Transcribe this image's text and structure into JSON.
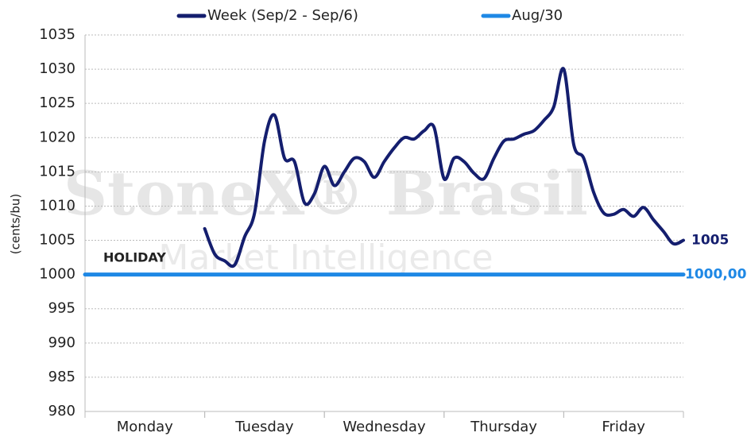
{
  "chart_data": {
    "type": "line",
    "y_label": "(cents/bu)",
    "annotation": "HOLIDAY",
    "watermark": [
      "StoneX® Brasil",
      "Market Intelligence"
    ],
    "categories": [
      null,
      null,
      null,
      null,
      null,
      null,
      "Monday",
      null,
      null,
      null,
      null,
      null,
      null,
      null,
      null,
      null,
      null,
      null,
      "Tuesday",
      null,
      null,
      null,
      null,
      null,
      null,
      null,
      null,
      null,
      null,
      null,
      "Wednesday",
      null,
      null,
      null,
      null,
      null,
      null,
      null,
      null,
      null,
      null,
      null,
      "Thursday",
      null,
      null,
      null,
      null,
      null,
      null,
      null,
      null,
      null,
      null,
      null,
      "Friday",
      null,
      null,
      null,
      null,
      null,
      null
    ],
    "series": [
      {
        "name": "Week (Sep/2 - Sep/6)",
        "color": "#141e6e",
        "label_last": true,
        "values": [
          null,
          null,
          null,
          null,
          null,
          null,
          null,
          null,
          null,
          null,
          null,
          null,
          1006.7,
          1003,
          1002,
          1001.4,
          1005.5,
          1009,
          1019.5,
          1023.3,
          1017,
          1016.5,
          1010.5,
          1011.8,
          1015.8,
          1013,
          1015,
          1017,
          1016.5,
          1014.2,
          1016.5,
          1018.5,
          1020,
          1019.8,
          1021,
          1021.5,
          1014,
          1017,
          1016.5,
          1014.8,
          1014,
          1017,
          1019.5,
          1019.8,
          1020.5,
          1021,
          1022.5,
          1024.5,
          1030,
          1019,
          1017,
          1012,
          1009,
          1008.8,
          1009.5,
          1008.5,
          1009.8,
          1008,
          1006.3,
          1004.5,
          1005
        ]
      },
      {
        "name": "Aug/30",
        "color": "#1e88e5",
        "values": [
          1000,
          1000,
          1000,
          1000,
          1000,
          1000,
          1000,
          1000,
          1000,
          1000,
          1000,
          1000,
          1000,
          1000,
          1000,
          1000,
          1000,
          1000,
          1000,
          1000,
          1000,
          1000,
          1000,
          1000,
          1000,
          1000,
          1000,
          1000,
          1000,
          1000,
          1000,
          1000,
          1000,
          1000,
          1000,
          1000,
          1000,
          1000,
          1000,
          1000,
          1000,
          1000,
          1000,
          1000,
          1000,
          1000,
          1000,
          1000,
          1000,
          1000,
          1000,
          1000,
          1000,
          1000,
          1000,
          1000,
          1000,
          1000,
          1000,
          1000,
          1000
        ],
        "value_labels": [
          null,
          null,
          null,
          null,
          null,
          null,
          null,
          null,
          null,
          null,
          null,
          null,
          null,
          null,
          null,
          null,
          null,
          null,
          null,
          null,
          null,
          null,
          null,
          null,
          null,
          null,
          null,
          null,
          null,
          null,
          null,
          null,
          null,
          null,
          null,
          null,
          null,
          null,
          null,
          null,
          null,
          null,
          null,
          null,
          null,
          null,
          null,
          null,
          null,
          null,
          null,
          null,
          null,
          null,
          null,
          null,
          null,
          null,
          null,
          null,
          "1000,00"
        ]
      }
    ],
    "ylim": [
      980,
      1035
    ],
    "yticks": [
      980,
      985,
      990,
      995,
      1000,
      1005,
      1010,
      1015,
      1020,
      1025,
      1030,
      1035
    ],
    "grid": true,
    "legend": "top"
  }
}
